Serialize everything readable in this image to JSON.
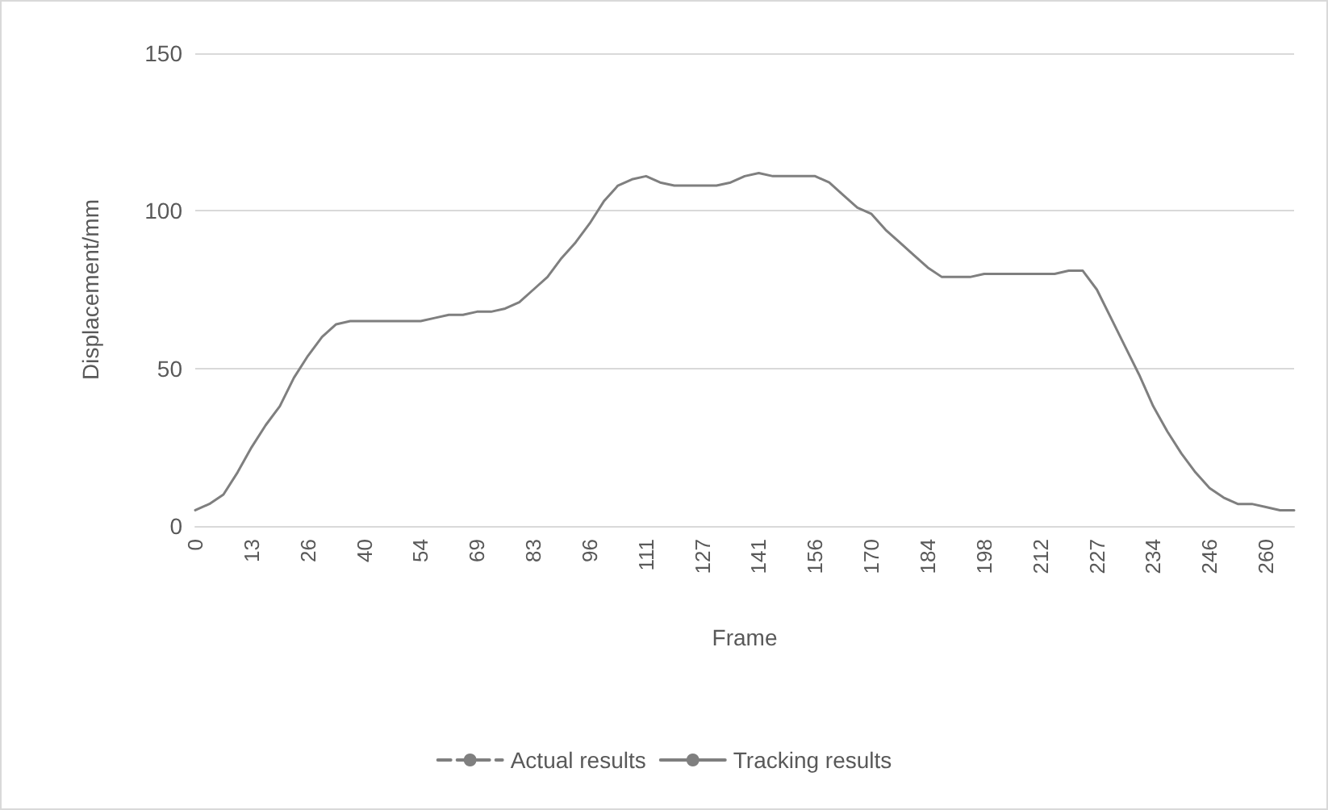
{
  "chart_data": {
    "type": "line",
    "xlabel": "Frame",
    "ylabel": "Displacement/mm",
    "categories": [
      "0",
      null,
      null,
      null,
      "13",
      null,
      null,
      null,
      "26",
      null,
      null,
      null,
      "40",
      null,
      null,
      null,
      "54",
      null,
      null,
      null,
      "69",
      null,
      null,
      null,
      "83",
      null,
      null,
      null,
      "96",
      null,
      null,
      null,
      "111",
      null,
      null,
      null,
      "127",
      null,
      null,
      null,
      "141",
      null,
      null,
      null,
      "156",
      null,
      null,
      null,
      "170",
      null,
      null,
      null,
      "184",
      null,
      null,
      null,
      "198",
      null,
      null,
      null,
      "212",
      null,
      null,
      null,
      "227",
      null,
      null,
      null,
      "234",
      null,
      null,
      null,
      "246",
      null,
      null,
      null,
      "260",
      null,
      null
    ],
    "series": [
      {
        "name": "Actual results",
        "color": "#7f7f7f",
        "line_style": "dashed",
        "values": [
          null,
          null,
          null,
          null,
          null,
          null,
          null,
          null,
          null,
          null,
          null,
          null,
          null,
          null,
          null,
          null,
          null,
          null,
          null,
          null,
          null,
          null,
          null,
          null,
          null,
          null,
          null,
          null,
          null,
          null,
          null,
          null,
          null,
          null,
          null,
          null,
          null,
          null,
          null,
          null,
          null,
          null,
          null,
          null,
          null,
          null,
          null,
          null,
          null,
          null,
          null,
          null,
          null,
          null,
          null,
          null,
          null,
          null,
          null,
          null,
          null,
          null,
          null,
          null,
          null,
          null,
          null,
          null,
          null,
          null,
          null,
          null,
          null,
          null,
          null,
          null,
          null,
          null,
          null
        ]
      },
      {
        "name": "Tracking results",
        "color": "#7f7f7f",
        "line_style": "solid",
        "values": [
          5,
          7,
          10,
          17,
          25,
          32,
          38,
          47,
          54,
          60,
          64,
          65,
          65,
          65,
          65,
          65,
          65,
          66,
          67,
          67,
          68,
          68,
          69,
          71,
          75,
          79,
          85,
          90,
          96,
          103,
          108,
          110,
          111,
          109,
          108,
          108,
          108,
          108,
          109,
          111,
          112,
          111,
          111,
          111,
          111,
          109,
          105,
          101,
          99,
          94,
          90,
          86,
          82,
          79,
          79,
          79,
          80,
          80,
          80,
          80,
          80,
          80,
          81,
          81,
          75,
          66,
          57,
          48,
          38,
          30,
          23,
          17,
          12,
          9,
          7,
          7,
          6,
          5,
          5
        ]
      }
    ],
    "ylim": [
      0,
      150
    ],
    "yticks": [
      0,
      50,
      100,
      150
    ],
    "grid": "y",
    "legend": "bottom",
    "marker": "none"
  }
}
